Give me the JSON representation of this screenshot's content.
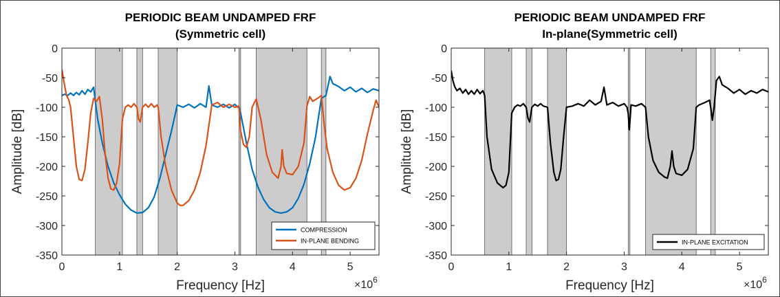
{
  "chart_data": [
    {
      "type": "line",
      "title": "PERIODIC BEAM UNDAMPED FRF",
      "subtitle": "(Symmetric cell)",
      "xlabel": "Frequency [Hz]",
      "ylabel": "Amplitude [dB]",
      "x_exponent_label": "×10",
      "x_exponent_power": "6",
      "xlim": [
        0,
        5.5
      ],
      "ylim": [
        -350,
        0
      ],
      "xticks": [
        0,
        1,
        2,
        3,
        4,
        5
      ],
      "xtick_labels": [
        "0",
        "1",
        "2",
        "3",
        "4",
        "5"
      ],
      "yticks": [
        0,
        -50,
        -100,
        -150,
        -200,
        -250,
        -300,
        -350
      ],
      "ytick_labels": [
        "0",
        "-50",
        "-100",
        "-150",
        "-200",
        "-250",
        "-300",
        "-350"
      ],
      "grid": false,
      "legend_position": "bottom-right",
      "bands": [
        [
          0.58,
          1.05
        ],
        [
          1.3,
          1.4
        ],
        [
          1.67,
          2.0
        ],
        [
          3.07,
          3.1
        ],
        [
          3.37,
          4.25
        ],
        [
          4.5,
          4.58
        ]
      ],
      "band_color": "#cccccc",
      "series": [
        {
          "name": "COMPRESSION",
          "color": "#0072BD",
          "points": [
            [
              0,
              -80
            ],
            [
              0.05,
              -78
            ],
            [
              0.1,
              -80
            ],
            [
              0.15,
              -76
            ],
            [
              0.2,
              -80
            ],
            [
              0.25,
              -75
            ],
            [
              0.3,
              -79
            ],
            [
              0.35,
              -72
            ],
            [
              0.4,
              -78
            ],
            [
              0.45,
              -70
            ],
            [
              0.5,
              -74
            ],
            [
              0.55,
              -66
            ],
            [
              0.58,
              -90
            ],
            [
              0.62,
              -120
            ],
            [
              0.7,
              -160
            ],
            [
              0.8,
              -200
            ],
            [
              0.9,
              -228
            ],
            [
              1.0,
              -248
            ],
            [
              1.1,
              -264
            ],
            [
              1.2,
              -274
            ],
            [
              1.3,
              -279
            ],
            [
              1.4,
              -278
            ],
            [
              1.5,
              -270
            ],
            [
              1.6,
              -252
            ],
            [
              1.7,
              -220
            ],
            [
              1.8,
              -180
            ],
            [
              1.9,
              -140
            ],
            [
              1.97,
              -110
            ],
            [
              2.0,
              -96
            ],
            [
              2.1,
              -100
            ],
            [
              2.2,
              -95
            ],
            [
              2.3,
              -101
            ],
            [
              2.4,
              -94
            ],
            [
              2.5,
              -100
            ],
            [
              2.55,
              -64
            ],
            [
              2.6,
              -96
            ],
            [
              2.7,
              -100
            ],
            [
              2.8,
              -95
            ],
            [
              2.9,
              -101
            ],
            [
              3.0,
              -95
            ],
            [
              3.05,
              -100
            ],
            [
              3.07,
              -98
            ],
            [
              3.1,
              -110
            ],
            [
              3.2,
              -160
            ],
            [
              3.3,
              -205
            ],
            [
              3.4,
              -235
            ],
            [
              3.5,
              -256
            ],
            [
              3.6,
              -270
            ],
            [
              3.7,
              -277
            ],
            [
              3.8,
              -279
            ],
            [
              3.9,
              -277
            ],
            [
              4.0,
              -270
            ],
            [
              4.1,
              -254
            ],
            [
              4.2,
              -230
            ],
            [
              4.3,
              -195
            ],
            [
              4.4,
              -150
            ],
            [
              4.5,
              -85
            ],
            [
              4.58,
              -80
            ],
            [
              4.65,
              -48
            ],
            [
              4.7,
              -60
            ],
            [
              4.8,
              -65
            ],
            [
              4.9,
              -72
            ],
            [
              5.0,
              -66
            ],
            [
              5.1,
              -74
            ],
            [
              5.2,
              -68
            ],
            [
              5.3,
              -75
            ],
            [
              5.4,
              -69
            ],
            [
              5.5,
              -72
            ]
          ]
        },
        {
          "name": "IN-PLANE BENDING",
          "color": "#D95319",
          "points": [
            [
              0,
              -36
            ],
            [
              0.04,
              -60
            ],
            [
              0.08,
              -80
            ],
            [
              0.12,
              -88
            ],
            [
              0.15,
              -100
            ],
            [
              0.2,
              -150
            ],
            [
              0.25,
              -200
            ],
            [
              0.3,
              -222
            ],
            [
              0.35,
              -224
            ],
            [
              0.4,
              -205
            ],
            [
              0.45,
              -160
            ],
            [
              0.5,
              -110
            ],
            [
              0.55,
              -85
            ],
            [
              0.6,
              -90
            ],
            [
              0.65,
              -82
            ],
            [
              0.7,
              -120
            ],
            [
              0.75,
              -180
            ],
            [
              0.8,
              -220
            ],
            [
              0.85,
              -238
            ],
            [
              0.9,
              -240
            ],
            [
              0.95,
              -228
            ],
            [
              1.0,
              -195
            ],
            [
              1.05,
              -120
            ],
            [
              1.1,
              -100
            ],
            [
              1.15,
              -96
            ],
            [
              1.2,
              -100
            ],
            [
              1.25,
              -94
            ],
            [
              1.3,
              -100
            ],
            [
              1.33,
              -120
            ],
            [
              1.36,
              -125
            ],
            [
              1.4,
              -100
            ],
            [
              1.45,
              -95
            ],
            [
              1.5,
              -100
            ],
            [
              1.55,
              -94
            ],
            [
              1.6,
              -100
            ],
            [
              1.65,
              -96
            ],
            [
              1.67,
              -100
            ],
            [
              1.72,
              -150
            ],
            [
              1.8,
              -200
            ],
            [
              1.9,
              -240
            ],
            [
              2.0,
              -262
            ],
            [
              2.05,
              -266
            ],
            [
              2.1,
              -266
            ],
            [
              2.2,
              -258
            ],
            [
              2.3,
              -240
            ],
            [
              2.4,
              -210
            ],
            [
              2.5,
              -165
            ],
            [
              2.6,
              -96
            ],
            [
              2.7,
              -92
            ],
            [
              2.8,
              -100
            ],
            [
              2.9,
              -95
            ],
            [
              3.0,
              -100
            ],
            [
              3.07,
              -98
            ],
            [
              3.1,
              -140
            ],
            [
              3.15,
              -163
            ],
            [
              3.2,
              -168
            ],
            [
              3.25,
              -150
            ],
            [
              3.3,
              -100
            ],
            [
              3.37,
              -86
            ],
            [
              3.45,
              -120
            ],
            [
              3.55,
              -180
            ],
            [
              3.65,
              -210
            ],
            [
              3.75,
              -220
            ],
            [
              3.8,
              -200
            ],
            [
              3.82,
              -172
            ],
            [
              3.85,
              -200
            ],
            [
              3.9,
              -212
            ],
            [
              4.0,
              -214
            ],
            [
              4.1,
              -200
            ],
            [
              4.2,
              -160
            ],
            [
              4.25,
              -98
            ],
            [
              4.3,
              -82
            ],
            [
              4.35,
              -90
            ],
            [
              4.45,
              -84
            ],
            [
              4.5,
              -80
            ],
            [
              4.55,
              -130
            ],
            [
              4.6,
              -170
            ],
            [
              4.7,
              -210
            ],
            [
              4.8,
              -232
            ],
            [
              4.9,
              -240
            ],
            [
              5.0,
              -236
            ],
            [
              5.1,
              -220
            ],
            [
              5.2,
              -190
            ],
            [
              5.3,
              -145
            ],
            [
              5.4,
              -105
            ],
            [
              5.45,
              -88
            ],
            [
              5.5,
              -100
            ]
          ]
        }
      ]
    },
    {
      "type": "line",
      "title": "PERIODIC BEAM UNDAMPED FRF",
      "subtitle": "In-plane(Symmetric cell)",
      "xlabel": "Frequency [Hz]",
      "ylabel": "Amplitude [dB]",
      "x_exponent_label": "×10",
      "x_exponent_power": "6",
      "xlim": [
        0,
        5.5
      ],
      "ylim": [
        -350,
        0
      ],
      "xticks": [
        0,
        1,
        2,
        3,
        4,
        5
      ],
      "xtick_labels": [
        "0",
        "1",
        "2",
        "3",
        "4",
        "5"
      ],
      "yticks": [
        0,
        -50,
        -100,
        -150,
        -200,
        -250,
        -300,
        -350
      ],
      "ytick_labels": [
        "0",
        "-50",
        "-100",
        "-150",
        "-200",
        "-250",
        "-300",
        "-350"
      ],
      "grid": false,
      "legend_position": "bottom-right",
      "bands": [
        [
          0.58,
          1.05
        ],
        [
          1.3,
          1.4
        ],
        [
          1.67,
          2.0
        ],
        [
          3.07,
          3.1
        ],
        [
          3.37,
          4.25
        ],
        [
          4.5,
          4.58
        ]
      ],
      "band_color": "#cccccc",
      "series": [
        {
          "name": "IN-PLANE EXCITATION",
          "color": "#000000",
          "points": [
            [
              0,
              -38
            ],
            [
              0.03,
              -55
            ],
            [
              0.06,
              -65
            ],
            [
              0.1,
              -72
            ],
            [
              0.15,
              -68
            ],
            [
              0.2,
              -76
            ],
            [
              0.25,
              -70
            ],
            [
              0.3,
              -78
            ],
            [
              0.35,
              -72
            ],
            [
              0.4,
              -78
            ],
            [
              0.45,
              -70
            ],
            [
              0.5,
              -77
            ],
            [
              0.55,
              -72
            ],
            [
              0.58,
              -80
            ],
            [
              0.62,
              -150
            ],
            [
              0.7,
              -205
            ],
            [
              0.8,
              -228
            ],
            [
              0.9,
              -236
            ],
            [
              0.95,
              -232
            ],
            [
              1.0,
              -210
            ],
            [
              1.03,
              -150
            ],
            [
              1.05,
              -110
            ],
            [
              1.1,
              -100
            ],
            [
              1.15,
              -96
            ],
            [
              1.2,
              -98
            ],
            [
              1.25,
              -94
            ],
            [
              1.3,
              -100
            ],
            [
              1.33,
              -118
            ],
            [
              1.36,
              -125
            ],
            [
              1.4,
              -100
            ],
            [
              1.45,
              -95
            ],
            [
              1.5,
              -98
            ],
            [
              1.55,
              -94
            ],
            [
              1.6,
              -98
            ],
            [
              1.67,
              -100
            ],
            [
              1.72,
              -160
            ],
            [
              1.78,
              -210
            ],
            [
              1.82,
              -224
            ],
            [
              1.86,
              -222
            ],
            [
              1.9,
              -205
            ],
            [
              1.95,
              -150
            ],
            [
              2.0,
              -100
            ],
            [
              2.1,
              -98
            ],
            [
              2.2,
              -94
            ],
            [
              2.3,
              -98
            ],
            [
              2.4,
              -88
            ],
            [
              2.5,
              -96
            ],
            [
              2.6,
              -90
            ],
            [
              2.65,
              -66
            ],
            [
              2.7,
              -96
            ],
            [
              2.8,
              -92
            ],
            [
              2.9,
              -98
            ],
            [
              3.0,
              -94
            ],
            [
              3.05,
              -100
            ],
            [
              3.07,
              -110
            ],
            [
              3.09,
              -138
            ],
            [
              3.12,
              -96
            ],
            [
              3.2,
              -98
            ],
            [
              3.3,
              -94
            ],
            [
              3.37,
              -100
            ],
            [
              3.42,
              -150
            ],
            [
              3.5,
              -190
            ],
            [
              3.6,
              -210
            ],
            [
              3.7,
              -218
            ],
            [
              3.75,
              -220
            ],
            [
              3.8,
              -200
            ],
            [
              3.83,
              -174
            ],
            [
              3.86,
              -200
            ],
            [
              3.9,
              -212
            ],
            [
              4.0,
              -215
            ],
            [
              4.1,
              -205
            ],
            [
              4.2,
              -170
            ],
            [
              4.25,
              -100
            ],
            [
              4.3,
              -96
            ],
            [
              4.4,
              -92
            ],
            [
              4.48,
              -88
            ],
            [
              4.5,
              -100
            ],
            [
              4.53,
              -122
            ],
            [
              4.56,
              -100
            ],
            [
              4.6,
              -55
            ],
            [
              4.65,
              -48
            ],
            [
              4.7,
              -62
            ],
            [
              4.8,
              -68
            ],
            [
              4.9,
              -76
            ],
            [
              5.0,
              -70
            ],
            [
              5.1,
              -78
            ],
            [
              5.2,
              -72
            ],
            [
              5.3,
              -76
            ],
            [
              5.4,
              -70
            ],
            [
              5.5,
              -74
            ]
          ]
        }
      ]
    }
  ]
}
